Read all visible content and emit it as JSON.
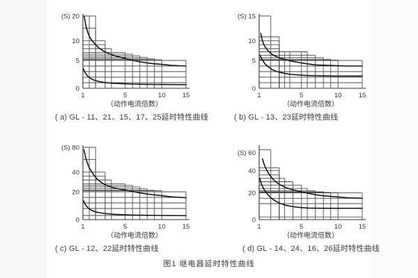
{
  "page": {
    "figure_caption": "图1  继电器延时特性曲线",
    "grid_color": "#4a4a4a",
    "axis_color": "#303030",
    "curve_color": "#161616",
    "text_color": "#333333"
  },
  "chart_data": [
    {
      "key": "a",
      "type": "line",
      "caption": "( a) GL - 11、21、15、17、25延时特性曲线",
      "y_unit": "(S)",
      "xlabel": "（动作电流倍数）",
      "xlim": [
        1,
        15
      ],
      "ylim": [
        0,
        20
      ],
      "x_ticks": [
        1,
        5,
        10,
        15
      ],
      "y_ticks": [
        0,
        5,
        10,
        20
      ],
      "x_scale_anchors": [
        [
          1,
          0
        ],
        [
          5,
          0.41
        ],
        [
          10,
          0.765
        ],
        [
          15,
          1
        ]
      ],
      "y_scale_anchors": [
        [
          0,
          0
        ],
        [
          5,
          0.385
        ],
        [
          10,
          0.657
        ],
        [
          15,
          0.833
        ],
        [
          20,
          1
        ]
      ],
      "step_rects": [
        [
          1.6,
          20
        ],
        [
          2.2,
          20
        ],
        [
          2.2,
          15
        ],
        [
          3.1,
          10
        ],
        [
          3.1,
          9
        ],
        [
          3.7,
          8
        ],
        [
          5,
          7
        ],
        [
          6,
          6.6
        ],
        [
          7,
          6.2
        ],
        [
          8,
          5.8
        ],
        [
          9,
          5.4
        ],
        [
          10,
          5.2
        ],
        [
          15,
          5
        ]
      ],
      "grid_hlines": [
        [
          4,
          15
        ],
        [
          3,
          15
        ],
        [
          2,
          15
        ],
        [
          1,
          15
        ]
      ],
      "series": [
        {
          "name": "upper-band",
          "points": [
            [
              1.12,
              20
            ],
            [
              1.3,
              15.5
            ],
            [
              1.5,
              12.8
            ],
            [
              1.7,
              11
            ],
            [
              2,
              9.6
            ],
            [
              2.2,
              9
            ],
            [
              2.5,
              8.2
            ],
            [
              3,
              7.3
            ],
            [
              3.5,
              6.7
            ],
            [
              4,
              6.2
            ],
            [
              5,
              5.5
            ],
            [
              6,
              5.05
            ],
            [
              7,
              4.75
            ],
            [
              8,
              4.55
            ],
            [
              9,
              4.4
            ],
            [
              10,
              4.3
            ],
            [
              12,
              4.12
            ],
            [
              15,
              4
            ]
          ]
        },
        {
          "name": "lower-band",
          "points": [
            [
              1.05,
              3.5
            ],
            [
              1.15,
              3
            ],
            [
              1.3,
              2.55
            ],
            [
              1.5,
              2.1
            ],
            [
              1.8,
              1.7
            ],
            [
              2,
              1.5
            ],
            [
              2.3,
              1.32
            ],
            [
              2.7,
              1.15
            ],
            [
              3,
              1.05
            ],
            [
              3.5,
              0.95
            ],
            [
              4,
              0.88
            ],
            [
              5,
              0.8
            ],
            [
              6,
              0.75
            ],
            [
              7,
              0.72
            ],
            [
              8,
              0.7
            ],
            [
              10,
              0.68
            ],
            [
              12,
              0.66
            ],
            [
              15,
              0.65
            ]
          ]
        }
      ]
    },
    {
      "key": "b",
      "type": "line",
      "caption": "( b) GL - 13、23延时特性曲线",
      "y_unit": "(S)",
      "xlabel": "（动作电流倍数）",
      "xlim": [
        1,
        15
      ],
      "ylim": [
        0,
        15
      ],
      "x_ticks": [
        1,
        5,
        10,
        15
      ],
      "y_ticks": [
        0,
        5,
        10,
        15
      ],
      "x_scale_anchors": [
        [
          1,
          0
        ],
        [
          5,
          0.41
        ],
        [
          10,
          0.765
        ],
        [
          15,
          1
        ]
      ],
      "y_scale_anchors": [
        [
          0,
          0
        ],
        [
          5,
          0.385
        ],
        [
          10,
          0.657
        ],
        [
          15,
          1
        ]
      ],
      "step_rects": [
        [
          2.1,
          15
        ],
        [
          2.9,
          10.8
        ],
        [
          2.9,
          10
        ],
        [
          2.9,
          9
        ],
        [
          2.9,
          8
        ],
        [
          3.4,
          7.2
        ],
        [
          3.9,
          7.2
        ],
        [
          5,
          7.2
        ],
        [
          5.8,
          7.2
        ],
        [
          6.9,
          6.3
        ],
        [
          8,
          5.7
        ],
        [
          9,
          5.3
        ],
        [
          10,
          5.1
        ],
        [
          15,
          5
        ]
      ],
      "grid_hlines": [
        [
          4,
          15
        ],
        [
          3,
          15
        ],
        [
          2,
          15
        ],
        [
          1,
          15
        ]
      ],
      "series": [
        {
          "name": "upper-band",
          "points": [
            [
              1.15,
              11.5
            ],
            [
              1.3,
              10
            ],
            [
              1.5,
              8.7
            ],
            [
              1.8,
              7.6
            ],
            [
              2,
              7
            ],
            [
              2.3,
              6.4
            ],
            [
              2.7,
              5.9
            ],
            [
              3,
              5.6
            ],
            [
              3.5,
              5.2
            ],
            [
              4,
              4.9
            ],
            [
              5,
              4.55
            ],
            [
              6,
              4.35
            ],
            [
              7,
              4.2
            ],
            [
              8,
              4.15
            ],
            [
              10,
              4.05
            ],
            [
              12,
              4
            ],
            [
              15,
              4
            ]
          ]
        },
        {
          "name": "lower-band",
          "points": [
            [
              1.08,
              6.3
            ],
            [
              1.2,
              5.6
            ],
            [
              1.4,
              4.8
            ],
            [
              1.6,
              4.3
            ],
            [
              1.9,
              3.8
            ],
            [
              2.2,
              3.4
            ],
            [
              2.6,
              3.05
            ],
            [
              3,
              2.85
            ],
            [
              3.5,
              2.65
            ],
            [
              4,
              2.5
            ],
            [
              5,
              2.35
            ],
            [
              6,
              2.28
            ],
            [
              7,
              2.25
            ],
            [
              8,
              2.22
            ],
            [
              10,
              2.2
            ],
            [
              15,
              2.2
            ]
          ]
        }
      ]
    },
    {
      "key": "c",
      "type": "line",
      "caption": "( c) GL - 12、22延时特性曲线",
      "y_unit": "(S)",
      "xlabel": "（动作电流倍数）",
      "xlim": [
        1,
        15
      ],
      "ylim": [
        0,
        80
      ],
      "x_ticks": [
        1,
        5,
        10,
        15
      ],
      "y_ticks": [
        0,
        20,
        40,
        80
      ],
      "x_scale_anchors": [
        [
          1,
          0
        ],
        [
          5,
          0.41
        ],
        [
          10,
          0.765
        ],
        [
          15,
          1
        ]
      ],
      "y_scale_anchors": [
        [
          0,
          0
        ],
        [
          20,
          0.385
        ],
        [
          40,
          0.657
        ],
        [
          60,
          0.833
        ],
        [
          80,
          1
        ]
      ],
      "step_rects": [
        [
          1.6,
          80
        ],
        [
          2.2,
          80
        ],
        [
          2.2,
          60
        ],
        [
          3.1,
          40
        ],
        [
          3.1,
          36
        ],
        [
          3.7,
          32
        ],
        [
          5,
          28
        ],
        [
          6,
          26.5
        ],
        [
          7,
          25
        ],
        [
          8,
          23
        ],
        [
          9,
          21.5
        ],
        [
          10,
          21
        ],
        [
          15,
          20
        ]
      ],
      "grid_hlines": [
        [
          16,
          15
        ],
        [
          12,
          15
        ],
        [
          8,
          15
        ],
        [
          3,
          15
        ]
      ],
      "series": [
        {
          "name": "upper-band",
          "points": [
            [
              1.1,
              76
            ],
            [
              1.25,
              64
            ],
            [
              1.4,
              55
            ],
            [
              1.6,
              47
            ],
            [
              1.8,
              41.5
            ],
            [
              2,
              37.5
            ],
            [
              2.3,
              33.5
            ],
            [
              2.7,
              29.8
            ],
            [
              3,
              27.8
            ],
            [
              3.5,
              25.5
            ],
            [
              4,
              23.8
            ],
            [
              5,
              21.8
            ],
            [
              6,
              20.3
            ],
            [
              7,
              19.2
            ],
            [
              8,
              18.4
            ],
            [
              9,
              17.8
            ],
            [
              10,
              17.2
            ],
            [
              12,
              16.4
            ],
            [
              15,
              15.7
            ]
          ]
        },
        {
          "name": "lower-band",
          "points": [
            [
              1.05,
              13.5
            ],
            [
              1.15,
              11.8
            ],
            [
              1.3,
              10
            ],
            [
              1.5,
              8.3
            ],
            [
              1.8,
              6.8
            ],
            [
              2,
              6.1
            ],
            [
              2.3,
              5.4
            ],
            [
              2.7,
              4.8
            ],
            [
              3,
              4.5
            ],
            [
              3.5,
              4.1
            ],
            [
              4,
              3.8
            ],
            [
              5,
              3.5
            ],
            [
              6,
              3.3
            ],
            [
              7,
              3.2
            ],
            [
              8,
              3.1
            ],
            [
              10,
              3
            ],
            [
              12,
              2.9
            ],
            [
              15,
              2.85
            ]
          ]
        }
      ]
    },
    {
      "key": "d",
      "type": "line",
      "caption": "( d) GL - 14、24、16、26延时特性曲线",
      "y_unit": "(S)",
      "xlabel": "（动作电流倍数）",
      "xlim": [
        1,
        15
      ],
      "ylim": [
        0,
        60
      ],
      "x_ticks": [
        1,
        5,
        10,
        15
      ],
      "y_ticks": [
        0,
        20,
        40,
        60
      ],
      "x_scale_anchors": [
        [
          1,
          0
        ],
        [
          5,
          0.41
        ],
        [
          10,
          0.765
        ],
        [
          15,
          1
        ]
      ],
      "y_scale_anchors": [
        [
          0,
          0
        ],
        [
          20,
          0.369
        ],
        [
          40,
          0.68
        ],
        [
          60,
          0.93
        ],
        [
          64,
          1
        ]
      ],
      "step_rects": [
        [
          2.1,
          62
        ],
        [
          2.9,
          43
        ],
        [
          2.9,
          40
        ],
        [
          2.9,
          36
        ],
        [
          3.4,
          33
        ],
        [
          4.2,
          30
        ],
        [
          5,
          27
        ],
        [
          5.8,
          24
        ],
        [
          6.9,
          22
        ],
        [
          8,
          21
        ],
        [
          9,
          20.5
        ],
        [
          10,
          20.2
        ],
        [
          15,
          20
        ]
      ],
      "grid_hlines": [
        [
          16,
          15
        ],
        [
          12,
          15
        ],
        [
          2,
          15
        ]
      ],
      "series": [
        {
          "name": "upper-band",
          "points": [
            [
              1.3,
              53
            ],
            [
              1.45,
              47.5
            ],
            [
              1.6,
              43
            ],
            [
              1.8,
              38.8
            ],
            [
              2,
              35.8
            ],
            [
              2.3,
              32.3
            ],
            [
              2.7,
              29
            ],
            [
              3,
              27.2
            ],
            [
              3.5,
              24.9
            ],
            [
              4,
              23.2
            ],
            [
              5,
              21
            ],
            [
              6,
              19.6
            ],
            [
              7,
              18.6
            ],
            [
              8,
              17.9
            ],
            [
              9,
              17.4
            ],
            [
              10,
              17
            ],
            [
              12,
              16.4
            ],
            [
              15,
              16
            ]
          ]
        },
        {
          "name": "lower-band",
          "points": [
            [
              1.05,
              33
            ],
            [
              1.15,
              29.8
            ],
            [
              1.3,
              26
            ],
            [
              1.5,
              22.5
            ],
            [
              1.8,
              19
            ],
            [
              2,
              17.2
            ],
            [
              2.3,
              15.2
            ],
            [
              2.7,
              13.2
            ],
            [
              3,
              12.2
            ],
            [
              3.5,
              10.8
            ],
            [
              4,
              10
            ],
            [
              4.5,
              9.4
            ],
            [
              5,
              9
            ],
            [
              5.5,
              8.8
            ],
            [
              6,
              8.65
            ],
            [
              7,
              8.55
            ],
            [
              8,
              8.5
            ],
            [
              10,
              8.5
            ],
            [
              15,
              8.5
            ]
          ]
        }
      ]
    }
  ]
}
